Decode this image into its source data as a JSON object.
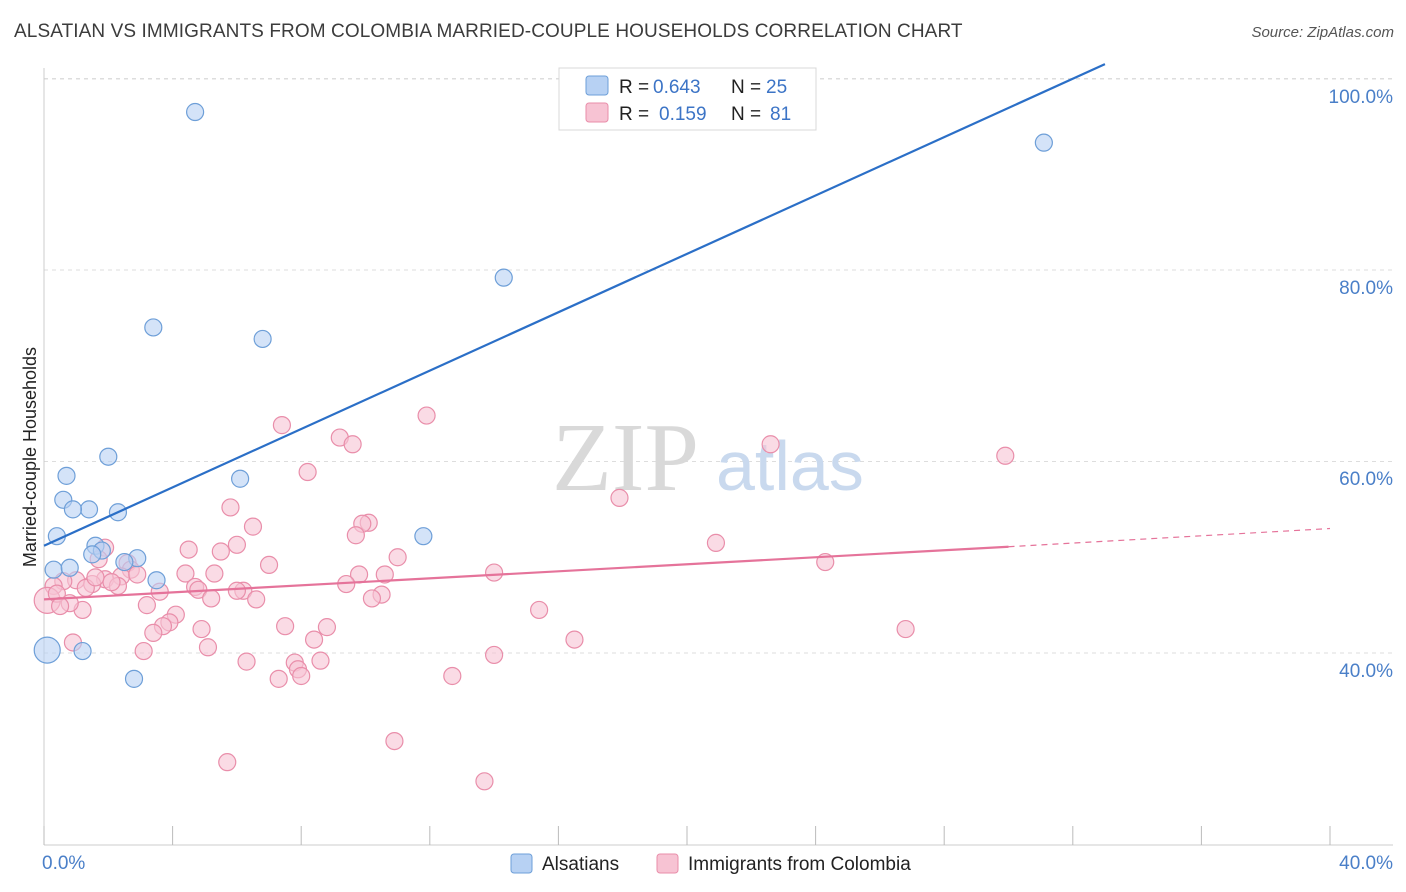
{
  "title": "ALSATIAN VS IMMIGRANTS FROM COLOMBIA MARRIED-COUPLE HOUSEHOLDS CORRELATION CHART",
  "source": "Source: ZipAtlas.com",
  "watermark": {
    "zip": "ZIP",
    "atlas": "atlas"
  },
  "colors": {
    "blue_fill": "#b7d1f3",
    "blue_stroke": "#6e9fd8",
    "blue_line": "#2b6fc7",
    "pink_fill": "#f7c3d3",
    "pink_stroke": "#e98eaa",
    "pink_line": "#e5739a",
    "grid": "#dddddd",
    "axis_text": "#4a7fc8"
  },
  "legend": {
    "rows": [
      {
        "r_label": "R =",
        "r_value": "0.643",
        "n_label": "N =",
        "n_value": "25"
      },
      {
        "r_label": "R =",
        "r_value": "0.159",
        "n_label": "N =",
        "n_value": "81"
      }
    ]
  },
  "chart_data": {
    "type": "scatter",
    "title": "ALSATIAN VS IMMIGRANTS FROM COLOMBIA MARRIED-COUPLE HOUSEHOLDS CORRELATION CHART",
    "xlabel": "",
    "ylabel": "Married-couple Households",
    "xlim": [
      0,
      40
    ],
    "ylim": [
      20,
      102
    ],
    "x_tick_labels": [
      "0.0%",
      "40.0%"
    ],
    "y_ticks": [
      40,
      60,
      80,
      100
    ],
    "y_tick_labels": [
      "40.0%",
      "60.0%",
      "80.0%",
      "100.0%"
    ],
    "grid": true,
    "legend_position": "top-center",
    "series": [
      {
        "name": "Alsatians",
        "R": 0.643,
        "N": 25,
        "trend": {
          "x": [
            0,
            33.0
          ],
          "y": [
            51.2,
            101.5
          ]
        },
        "points": [
          {
            "x": 4.7,
            "y": 96.5
          },
          {
            "x": 31.1,
            "y": 93.3
          },
          {
            "x": 14.3,
            "y": 79.2
          },
          {
            "x": 3.4,
            "y": 74.0
          },
          {
            "x": 6.8,
            "y": 72.8
          },
          {
            "x": 2.0,
            "y": 60.5
          },
          {
            "x": 0.7,
            "y": 58.5
          },
          {
            "x": 6.1,
            "y": 58.2
          },
          {
            "x": 0.6,
            "y": 56.0
          },
          {
            "x": 1.4,
            "y": 55.0
          },
          {
            "x": 0.9,
            "y": 55.0
          },
          {
            "x": 2.3,
            "y": 54.7
          },
          {
            "x": 0.4,
            "y": 52.2
          },
          {
            "x": 11.8,
            "y": 52.2
          },
          {
            "x": 1.6,
            "y": 51.2
          },
          {
            "x": 1.8,
            "y": 50.7
          },
          {
            "x": 1.5,
            "y": 50.3
          },
          {
            "x": 2.9,
            "y": 49.9
          },
          {
            "x": 2.5,
            "y": 49.5
          },
          {
            "x": 0.3,
            "y": 48.7
          },
          {
            "x": 0.8,
            "y": 48.9
          },
          {
            "x": 3.5,
            "y": 47.6
          },
          {
            "x": 0.1,
            "y": 40.3
          },
          {
            "x": 1.2,
            "y": 40.2
          },
          {
            "x": 2.8,
            "y": 37.3
          }
        ]
      },
      {
        "name": "Immigrants from Colombia",
        "R": 0.159,
        "N": 81,
        "trend": {
          "x": [
            0,
            30.0
          ],
          "y": [
            45.6,
            51.1
          ]
        },
        "trend_dashed": {
          "x": [
            30.0,
            40.0
          ],
          "y": [
            51.1,
            53.0
          ]
        },
        "points": [
          {
            "x": 11.9,
            "y": 64.8
          },
          {
            "x": 7.4,
            "y": 63.8
          },
          {
            "x": 9.2,
            "y": 62.5
          },
          {
            "x": 9.6,
            "y": 61.8
          },
          {
            "x": 22.6,
            "y": 61.8
          },
          {
            "x": 29.9,
            "y": 60.6
          },
          {
            "x": 8.2,
            "y": 58.9
          },
          {
            "x": 17.9,
            "y": 56.2
          },
          {
            "x": 5.8,
            "y": 55.2
          },
          {
            "x": 10.1,
            "y": 53.6
          },
          {
            "x": 9.9,
            "y": 53.5
          },
          {
            "x": 6.5,
            "y": 53.2
          },
          {
            "x": 9.7,
            "y": 52.3
          },
          {
            "x": 6.0,
            "y": 51.3
          },
          {
            "x": 20.9,
            "y": 51.5
          },
          {
            "x": 4.5,
            "y": 50.8
          },
          {
            "x": 5.5,
            "y": 50.6
          },
          {
            "x": 1.9,
            "y": 51.0
          },
          {
            "x": 11.0,
            "y": 50.0
          },
          {
            "x": 1.7,
            "y": 49.8
          },
          {
            "x": 2.6,
            "y": 49.4
          },
          {
            "x": 24.3,
            "y": 49.5
          },
          {
            "x": 7.0,
            "y": 49.2
          },
          {
            "x": 2.7,
            "y": 48.7
          },
          {
            "x": 4.4,
            "y": 48.3
          },
          {
            "x": 5.3,
            "y": 48.3
          },
          {
            "x": 9.8,
            "y": 48.2
          },
          {
            "x": 10.6,
            "y": 48.2
          },
          {
            "x": 14.0,
            "y": 48.4
          },
          {
            "x": 2.4,
            "y": 48.0
          },
          {
            "x": 1.9,
            "y": 47.7
          },
          {
            "x": 1.0,
            "y": 47.6
          },
          {
            "x": 0.6,
            "y": 47.5
          },
          {
            "x": 1.5,
            "y": 47.2
          },
          {
            "x": 0.3,
            "y": 47.0
          },
          {
            "x": 2.3,
            "y": 47.0
          },
          {
            "x": 9.4,
            "y": 47.2
          },
          {
            "x": 4.7,
            "y": 46.9
          },
          {
            "x": 4.8,
            "y": 46.6
          },
          {
            "x": 6.2,
            "y": 46.5
          },
          {
            "x": 3.6,
            "y": 46.4
          },
          {
            "x": 6.0,
            "y": 46.5
          },
          {
            "x": 10.5,
            "y": 46.1
          },
          {
            "x": 10.2,
            "y": 45.7
          },
          {
            "x": 5.2,
            "y": 45.7
          },
          {
            "x": 6.6,
            "y": 45.6
          },
          {
            "x": 0.1,
            "y": 45.5
          },
          {
            "x": 3.2,
            "y": 45.0
          },
          {
            "x": 1.2,
            "y": 44.5
          },
          {
            "x": 15.4,
            "y": 44.5
          },
          {
            "x": 4.1,
            "y": 44.0
          },
          {
            "x": 3.9,
            "y": 43.2
          },
          {
            "x": 3.7,
            "y": 42.8
          },
          {
            "x": 7.5,
            "y": 42.8
          },
          {
            "x": 8.8,
            "y": 42.7
          },
          {
            "x": 4.9,
            "y": 42.5
          },
          {
            "x": 3.4,
            "y": 42.1
          },
          {
            "x": 26.8,
            "y": 42.5
          },
          {
            "x": 8.4,
            "y": 41.4
          },
          {
            "x": 16.5,
            "y": 41.4
          },
          {
            "x": 0.9,
            "y": 41.1
          },
          {
            "x": 3.1,
            "y": 40.2
          },
          {
            "x": 5.1,
            "y": 40.6
          },
          {
            "x": 14.0,
            "y": 39.8
          },
          {
            "x": 6.3,
            "y": 39.1
          },
          {
            "x": 7.8,
            "y": 39.0
          },
          {
            "x": 8.6,
            "y": 39.2
          },
          {
            "x": 7.9,
            "y": 38.3
          },
          {
            "x": 8.0,
            "y": 37.6
          },
          {
            "x": 12.7,
            "y": 37.6
          },
          {
            "x": 7.3,
            "y": 37.3
          },
          {
            "x": 10.9,
            "y": 30.8
          },
          {
            "x": 5.7,
            "y": 28.6
          },
          {
            "x": 13.7,
            "y": 26.6
          },
          {
            "x": 0.4,
            "y": 46.2
          },
          {
            "x": 2.1,
            "y": 47.4
          },
          {
            "x": 0.8,
            "y": 45.2
          },
          {
            "x": 1.3,
            "y": 46.8
          },
          {
            "x": 2.9,
            "y": 48.2
          },
          {
            "x": 0.5,
            "y": 44.9
          },
          {
            "x": 1.6,
            "y": 47.9
          }
        ]
      }
    ]
  }
}
